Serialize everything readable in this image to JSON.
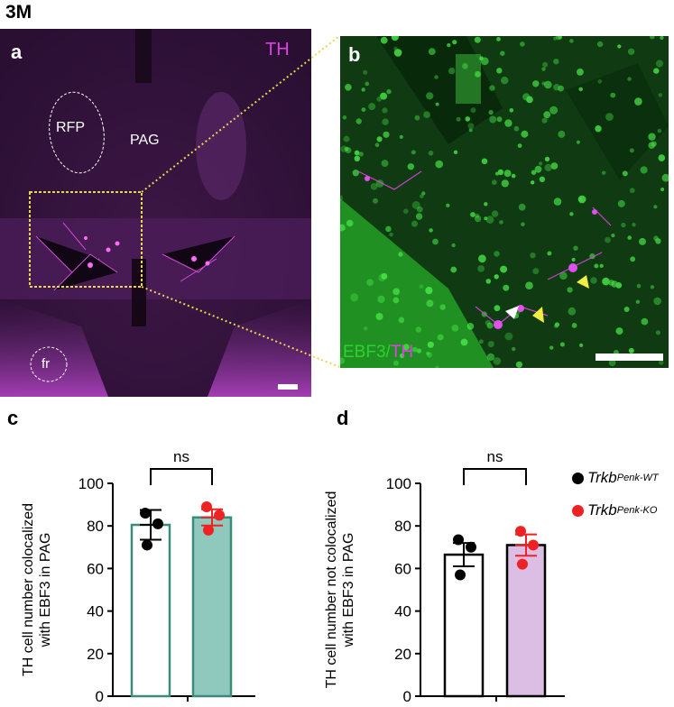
{
  "figure_id": "3M",
  "panels": {
    "a": {
      "letter": "a",
      "channel_label": "TH",
      "regions": [
        "RFP",
        "PAG",
        "fr"
      ]
    },
    "b": {
      "letter": "b",
      "channel_label_1": "EBF3",
      "channel_sep": "/",
      "channel_label_2": "TH"
    },
    "c": {
      "letter": "c"
    },
    "d": {
      "letter": "d"
    }
  },
  "legend": {
    "entries": [
      {
        "base": "Trkb",
        "sup": "Penk-WT",
        "color": "#000000"
      },
      {
        "base": "Trkb",
        "sup": "Penk-KO",
        "color": "#ee2222"
      }
    ]
  },
  "colors": {
    "magenta": "#e040e8",
    "green": "#2fd12f",
    "teal_fill": "#8fc9bd",
    "teal_stroke": "#3b8a7a",
    "lilac_fill": "#dcbde3",
    "wt_dot": "#000000",
    "ko_dot": "#ee2222",
    "dotted_line": "#e6d84a"
  },
  "chart_data": [
    {
      "type": "bar",
      "panel": "c",
      "ylabel_line1": "TH cell number colocalized",
      "ylabel_line2": "with EBF3 in PAG",
      "ylim": [
        0,
        100
      ],
      "yticks": [
        0,
        20,
        40,
        60,
        80,
        100
      ],
      "significance": "ns",
      "series": [
        {
          "group": "Trkb Penk-WT",
          "mean": 80.5,
          "sem": 7,
          "points": [
            86,
            81,
            71
          ]
        },
        {
          "group": "Trkb Penk-KO",
          "mean": 84,
          "sem": 3.8,
          "points": [
            89,
            85,
            78
          ]
        }
      ]
    },
    {
      "type": "bar",
      "panel": "d",
      "ylabel_line1": "TH cell number not colocalized",
      "ylabel_line2": "with EBF3  in PAG",
      "ylim": [
        0,
        100
      ],
      "yticks": [
        0,
        20,
        40,
        60,
        80,
        100
      ],
      "significance": "ns",
      "series": [
        {
          "group": "Trkb Penk-WT",
          "mean": 66.5,
          "sem": 5.5,
          "points": [
            73.5,
            70,
            57
          ]
        },
        {
          "group": "Trkb Penk-KO",
          "mean": 71,
          "sem": 5,
          "points": [
            77.5,
            71,
            62
          ]
        }
      ]
    }
  ]
}
